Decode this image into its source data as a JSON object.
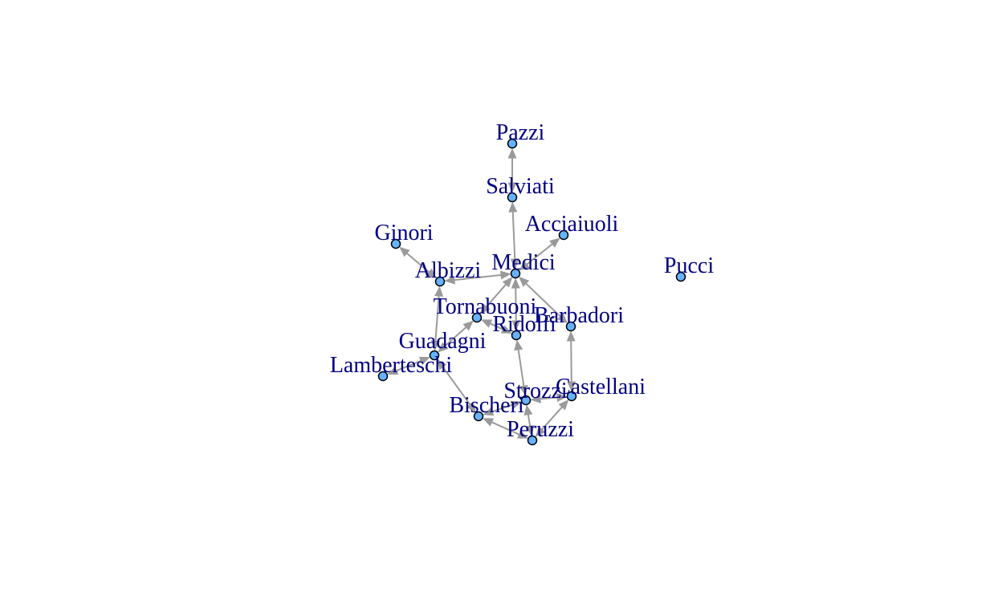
{
  "colors": {
    "background": "#ffffff",
    "edge": "#9a9a9a",
    "node_fill": "#66b2ff",
    "node_stroke": "#000000",
    "label": "#000080"
  },
  "nodes": [
    {
      "id": "Pazzi",
      "label": "Pazzi"
    },
    {
      "id": "Salviati",
      "label": "Salviati"
    },
    {
      "id": "Acciaiuoli",
      "label": "Acciaiuoli"
    },
    {
      "id": "Ginori",
      "label": "Ginori"
    },
    {
      "id": "Medici",
      "label": "Medici"
    },
    {
      "id": "Albizzi",
      "label": "Albizzi"
    },
    {
      "id": "Pucci",
      "label": "Pucci"
    },
    {
      "id": "Tornabuoni",
      "label": "Tornabuoni"
    },
    {
      "id": "Barbadori",
      "label": "Barbadori"
    },
    {
      "id": "Ridolfi",
      "label": "Ridolfi"
    },
    {
      "id": "Guadagni",
      "label": "Guadagni"
    },
    {
      "id": "Lamberteschi",
      "label": "Lamberteschi"
    },
    {
      "id": "Castellani",
      "label": "Castellani"
    },
    {
      "id": "Strozzi",
      "label": "Strozzi"
    },
    {
      "id": "Bischeri",
      "label": "Bischeri"
    },
    {
      "id": "Peruzzi",
      "label": "Peruzzi"
    }
  ],
  "edges": [
    {
      "from": "Pazzi",
      "to": "Salviati"
    },
    {
      "from": "Salviati",
      "to": "Medici"
    },
    {
      "from": "Acciaiuoli",
      "to": "Medici"
    },
    {
      "from": "Ginori",
      "to": "Albizzi"
    },
    {
      "from": "Albizzi",
      "to": "Medici"
    },
    {
      "from": "Albizzi",
      "to": "Guadagni"
    },
    {
      "from": "Tornabuoni",
      "to": "Medici"
    },
    {
      "from": "Tornabuoni",
      "to": "Guadagni"
    },
    {
      "from": "Tornabuoni",
      "to": "Ridolfi"
    },
    {
      "from": "Barbadori",
      "to": "Medici"
    },
    {
      "from": "Barbadori",
      "to": "Castellani"
    },
    {
      "from": "Ridolfi",
      "to": "Medici"
    },
    {
      "from": "Ridolfi",
      "to": "Strozzi"
    },
    {
      "from": "Guadagni",
      "to": "Lamberteschi"
    },
    {
      "from": "Guadagni",
      "to": "Bischeri"
    },
    {
      "from": "Castellani",
      "to": "Strozzi"
    },
    {
      "from": "Castellani",
      "to": "Peruzzi"
    },
    {
      "from": "Strozzi",
      "to": "Bischeri"
    },
    {
      "from": "Strozzi",
      "to": "Peruzzi"
    },
    {
      "from": "Bischeri",
      "to": "Peruzzi"
    }
  ]
}
